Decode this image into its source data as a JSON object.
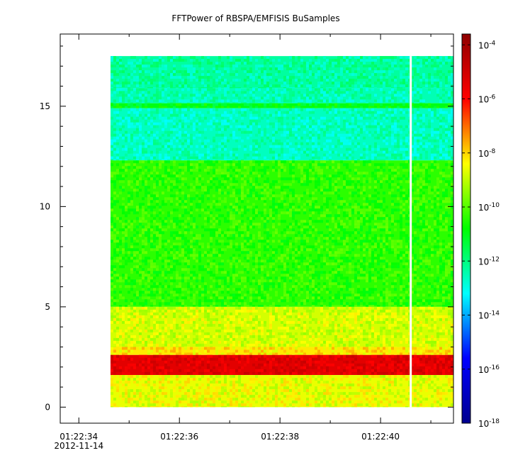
{
  "chart_data": {
    "type": "heatmap",
    "title": "FFTPower of RBSPA/EMFISIS  BuSamples",
    "xlabel": "",
    "ylabel": "",
    "x_ticks": [
      {
        "time": "01:22:34",
        "date": "2012-11-14"
      },
      {
        "time": "01:22:36",
        "date": ""
      },
      {
        "time": "01:22:38",
        "date": ""
      },
      {
        "time": "01:22:40",
        "date": ""
      }
    ],
    "x_range_seconds_after_012234": [
      -0.37,
      7.45
    ],
    "data_x_range_seconds_after_012234": [
      0.63,
      7.45
    ],
    "gap_at_seconds_after_012234": 6.6,
    "y_ticks": [
      0,
      5,
      10,
      15
    ],
    "ylim": [
      -0.8,
      18.6
    ],
    "data_y_range": [
      0,
      17.5
    ],
    "colorbar": {
      "scale": "log",
      "range_exponents": [
        -18,
        -3.6
      ],
      "tick_base": "10",
      "tick_exponents": [
        "-18",
        "-16",
        "-14",
        "-12",
        "-10",
        "-8",
        "-6",
        "-4"
      ],
      "tick_values": [
        -18,
        -16,
        -14,
        -12,
        -10,
        -8,
        -6,
        -4
      ],
      "colormap": [
        "#00008f",
        "#0000ff",
        "#00ffff",
        "#00ff00",
        "#ffff00",
        "#ff0000",
        "#8f0000"
      ]
    },
    "bands": [
      {
        "y_from": 15.9,
        "y_to": 17.5,
        "log_power": -12.3
      },
      {
        "y_from": 15.15,
        "y_to": 15.9,
        "log_power": -12.5
      },
      {
        "y_from": 14.9,
        "y_to": 15.15,
        "log_power": -11.0
      },
      {
        "y_from": 12.3,
        "y_to": 14.9,
        "log_power": -12.6
      },
      {
        "y_from": 5.0,
        "y_to": 12.3,
        "log_power": -10.4
      },
      {
        "y_from": 3.0,
        "y_to": 5.0,
        "log_power": -8.8
      },
      {
        "y_from": 2.6,
        "y_to": 3.0,
        "log_power": -8.2
      },
      {
        "y_from": 1.6,
        "y_to": 2.6,
        "log_power": -5.4
      },
      {
        "y_from": 0.0,
        "y_to": 1.6,
        "log_power": -8.6
      }
    ]
  }
}
